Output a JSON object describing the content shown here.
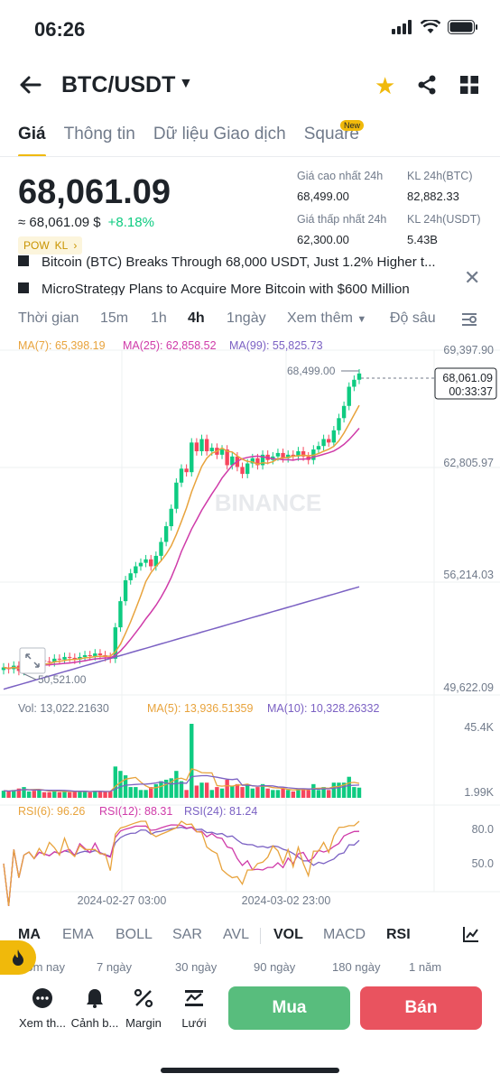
{
  "status": {
    "time": "06:26"
  },
  "header": {
    "pair": "BTC/USDT"
  },
  "tabs": [
    "Giá",
    "Thông tin",
    "Dữ liệu Giao dịch",
    "Square"
  ],
  "tab_badge": "New",
  "price": {
    "last": "68,061.09",
    "approx": "≈ 68,061.09 $",
    "change": "+8.18%",
    "badges": [
      "POW",
      "KL"
    ]
  },
  "stats": {
    "high_label": "Giá cao nhất 24h",
    "high": "68,499.00",
    "vol_btc_label": "KL 24h(BTC)",
    "vol_btc": "82,882.33",
    "low_label": "Giá thấp nhất 24h",
    "low": "62,300.00",
    "vol_usdt_label": "KL 24h(USDT)",
    "vol_usdt": "5.43B"
  },
  "news": [
    "Bitcoin (BTC) Breaks Through 68,000 USDT, Just 1.2% Higher t...",
    "MicroStrategy Plans to Acquire More Bitcoin with $600 Million"
  ],
  "timeframes": [
    "Thời gian",
    "15m",
    "1h",
    "4h",
    "1ngày",
    "Xem thêm",
    "Độ sâu"
  ],
  "chart": {
    "ma7": "MA(7): 65,398.19",
    "ma25": "MA(25): 62,858.52",
    "ma99": "MA(99): 55,825.73",
    "y_labels": [
      "69,397.90",
      "62,805.97",
      "56,214.03",
      "49,622.09"
    ],
    "high_marker": "68,499.00",
    "low_marker": "50,521.00",
    "last_price": "68,061.09",
    "countdown": "00:33:37",
    "watermark": "BINANCE",
    "vol": "Vol: 13,022.21630",
    "vol_ma5": "MA(5): 13,936.51359",
    "vol_ma10": "MA(10): 10,328.26332",
    "vol_y": [
      "45.4K",
      "1.99K"
    ],
    "rsi6": "RSI(6): 96.26",
    "rsi12": "RSI(12): 88.31",
    "rsi24": "RSI(24): 81.24",
    "rsi_y": [
      "80.0",
      "50.0"
    ],
    "dates": [
      "2024-02-27 03:00",
      "2024-03-02 23:00"
    ]
  },
  "chart_data": {
    "type": "candlestick",
    "pair": "BTC/USDT",
    "interval": "4h",
    "ylim": [
      49622.09,
      69397.9
    ],
    "close_approx": [
      51200,
      51100,
      51300,
      51000,
      51400,
      51500,
      51350,
      51600,
      51550,
      51500,
      51700,
      51650,
      51800,
      51750,
      51650,
      51800,
      51900,
      51850,
      52000,
      51900,
      51800,
      51700,
      53500,
      55000,
      56200,
      56600,
      57000,
      57200,
      57400,
      57000,
      57600,
      58400,
      59300,
      60300,
      61800,
      62600,
      62400,
      64100,
      63600,
      64300,
      63600,
      63800,
      63400,
      63700,
      62800,
      63300,
      62700,
      62300,
      62900,
      63200,
      62800,
      63400,
      63100,
      63300,
      63500,
      63200,
      63400,
      63300,
      63600,
      63300,
      63100,
      63700,
      63900,
      64300,
      64100,
      64800,
      65500,
      66200,
      67300,
      67700,
      68061.09
    ],
    "volume_ylim": [
      1990,
      45400
    ],
    "rsi_levels": [
      50,
      80
    ]
  },
  "indicators": [
    "MA",
    "EMA",
    "BOLL",
    "SAR",
    "AVL",
    "VOL",
    "MACD",
    "RSI"
  ],
  "periods": [
    "Hôm nay",
    "7 ngày",
    "30 ngày",
    "90 ngày",
    "180 ngày",
    "1 năm"
  ],
  "bottom": {
    "tools": [
      "Xem th...",
      "Cảnh b...",
      "Margin",
      "Lưới"
    ],
    "buy": "Mua",
    "sell": "Bán"
  }
}
